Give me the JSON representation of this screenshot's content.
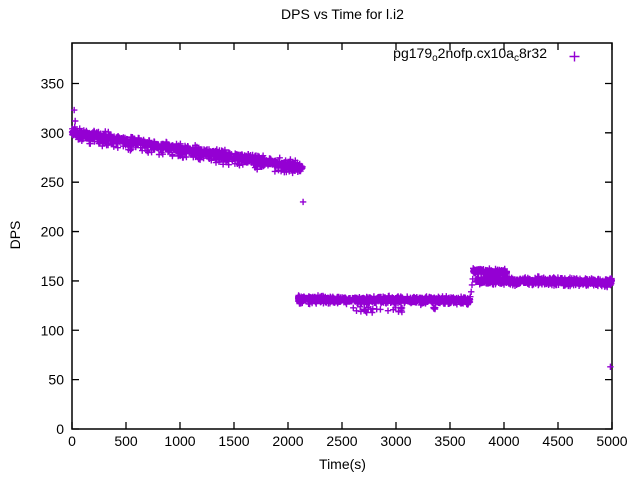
{
  "title": "DPS vs Time for l.i2",
  "axes": {
    "x": {
      "label": "Time(s)",
      "ticks": [
        0,
        500,
        1000,
        1500,
        2000,
        2500,
        3000,
        3500,
        4000,
        4500,
        5000
      ],
      "range": [
        0,
        5000
      ]
    },
    "y": {
      "label": "DPS",
      "ticks": [
        0,
        50,
        100,
        150,
        200,
        250,
        300,
        350
      ],
      "range": [
        0,
        391
      ]
    }
  },
  "legend": {
    "label": "pg179_o2nofp.cx10a_c8r32",
    "label_parts": [
      {
        "text": "pg179"
      },
      {
        "text": "o",
        "sub": true
      },
      {
        "text": "2nofp.cx10a"
      },
      {
        "text": "c",
        "sub": true
      },
      {
        "text": "8r32"
      }
    ],
    "marker": "plus",
    "color": "#9400D3"
  },
  "chart_data": {
    "type": "scatter",
    "title": "DPS vs Time for l.i2",
    "xlabel": "Time(s)",
    "ylabel": "DPS",
    "xlim": [
      0,
      5000
    ],
    "ylim": [
      0,
      391
    ],
    "grid": false,
    "legend_position": "top-right-inside",
    "series": [
      {
        "name": "pg179_o2nofp.cx10a_c8r32",
        "color": "#9400D3",
        "marker": "plus",
        "description": "Dense + marker bands: ~300 declining to ~265 DPS over t=0-2135s, flat ~131 DPS for t=2090-3685s, brief ~160 DPS blip t=3715-4030s, flat ~149 DPS for t=3740-5000s",
        "segments": [
          {
            "t_start": 0,
            "t_end": 2135,
            "dps_start": 300,
            "dps_end": 265,
            "jitter": 3.0,
            "points": 950,
            "below_scatter": {
              "count": 95,
              "offset_min": 4,
              "offset_max": 9
            },
            "above_scatter": {
              "count": 28,
              "offset_min": 3.5,
              "offset_max": 6.5
            }
          },
          {
            "t_start": 2090,
            "t_end": 3685,
            "dps_start": 131,
            "dps_end": 130.5,
            "jitter": 2.6,
            "points": 820,
            "below_scatter": {
              "count": 30,
              "offset_min": 7,
              "offset_max": 13,
              "t_start": 2600,
              "t_end": 3430
            }
          },
          {
            "t_start": 3715,
            "t_end": 4030,
            "dps_start": 159.5,
            "dps_end": 159,
            "jitter": 2.2,
            "points": 150
          },
          {
            "t_start": 3740,
            "t_end": 5000,
            "dps_start": 150.5,
            "dps_end": 148.5,
            "jitter": 3.0,
            "points": 640
          }
        ],
        "outliers": [
          [
            20,
            323
          ],
          [
            30,
            312
          ],
          [
            25,
            306
          ],
          [
            2140,
            230
          ],
          [
            3688,
            134
          ],
          [
            3696,
            139
          ],
          [
            3704,
            146
          ],
          [
            3710,
            152
          ],
          [
            4985,
            63
          ]
        ]
      }
    ]
  }
}
